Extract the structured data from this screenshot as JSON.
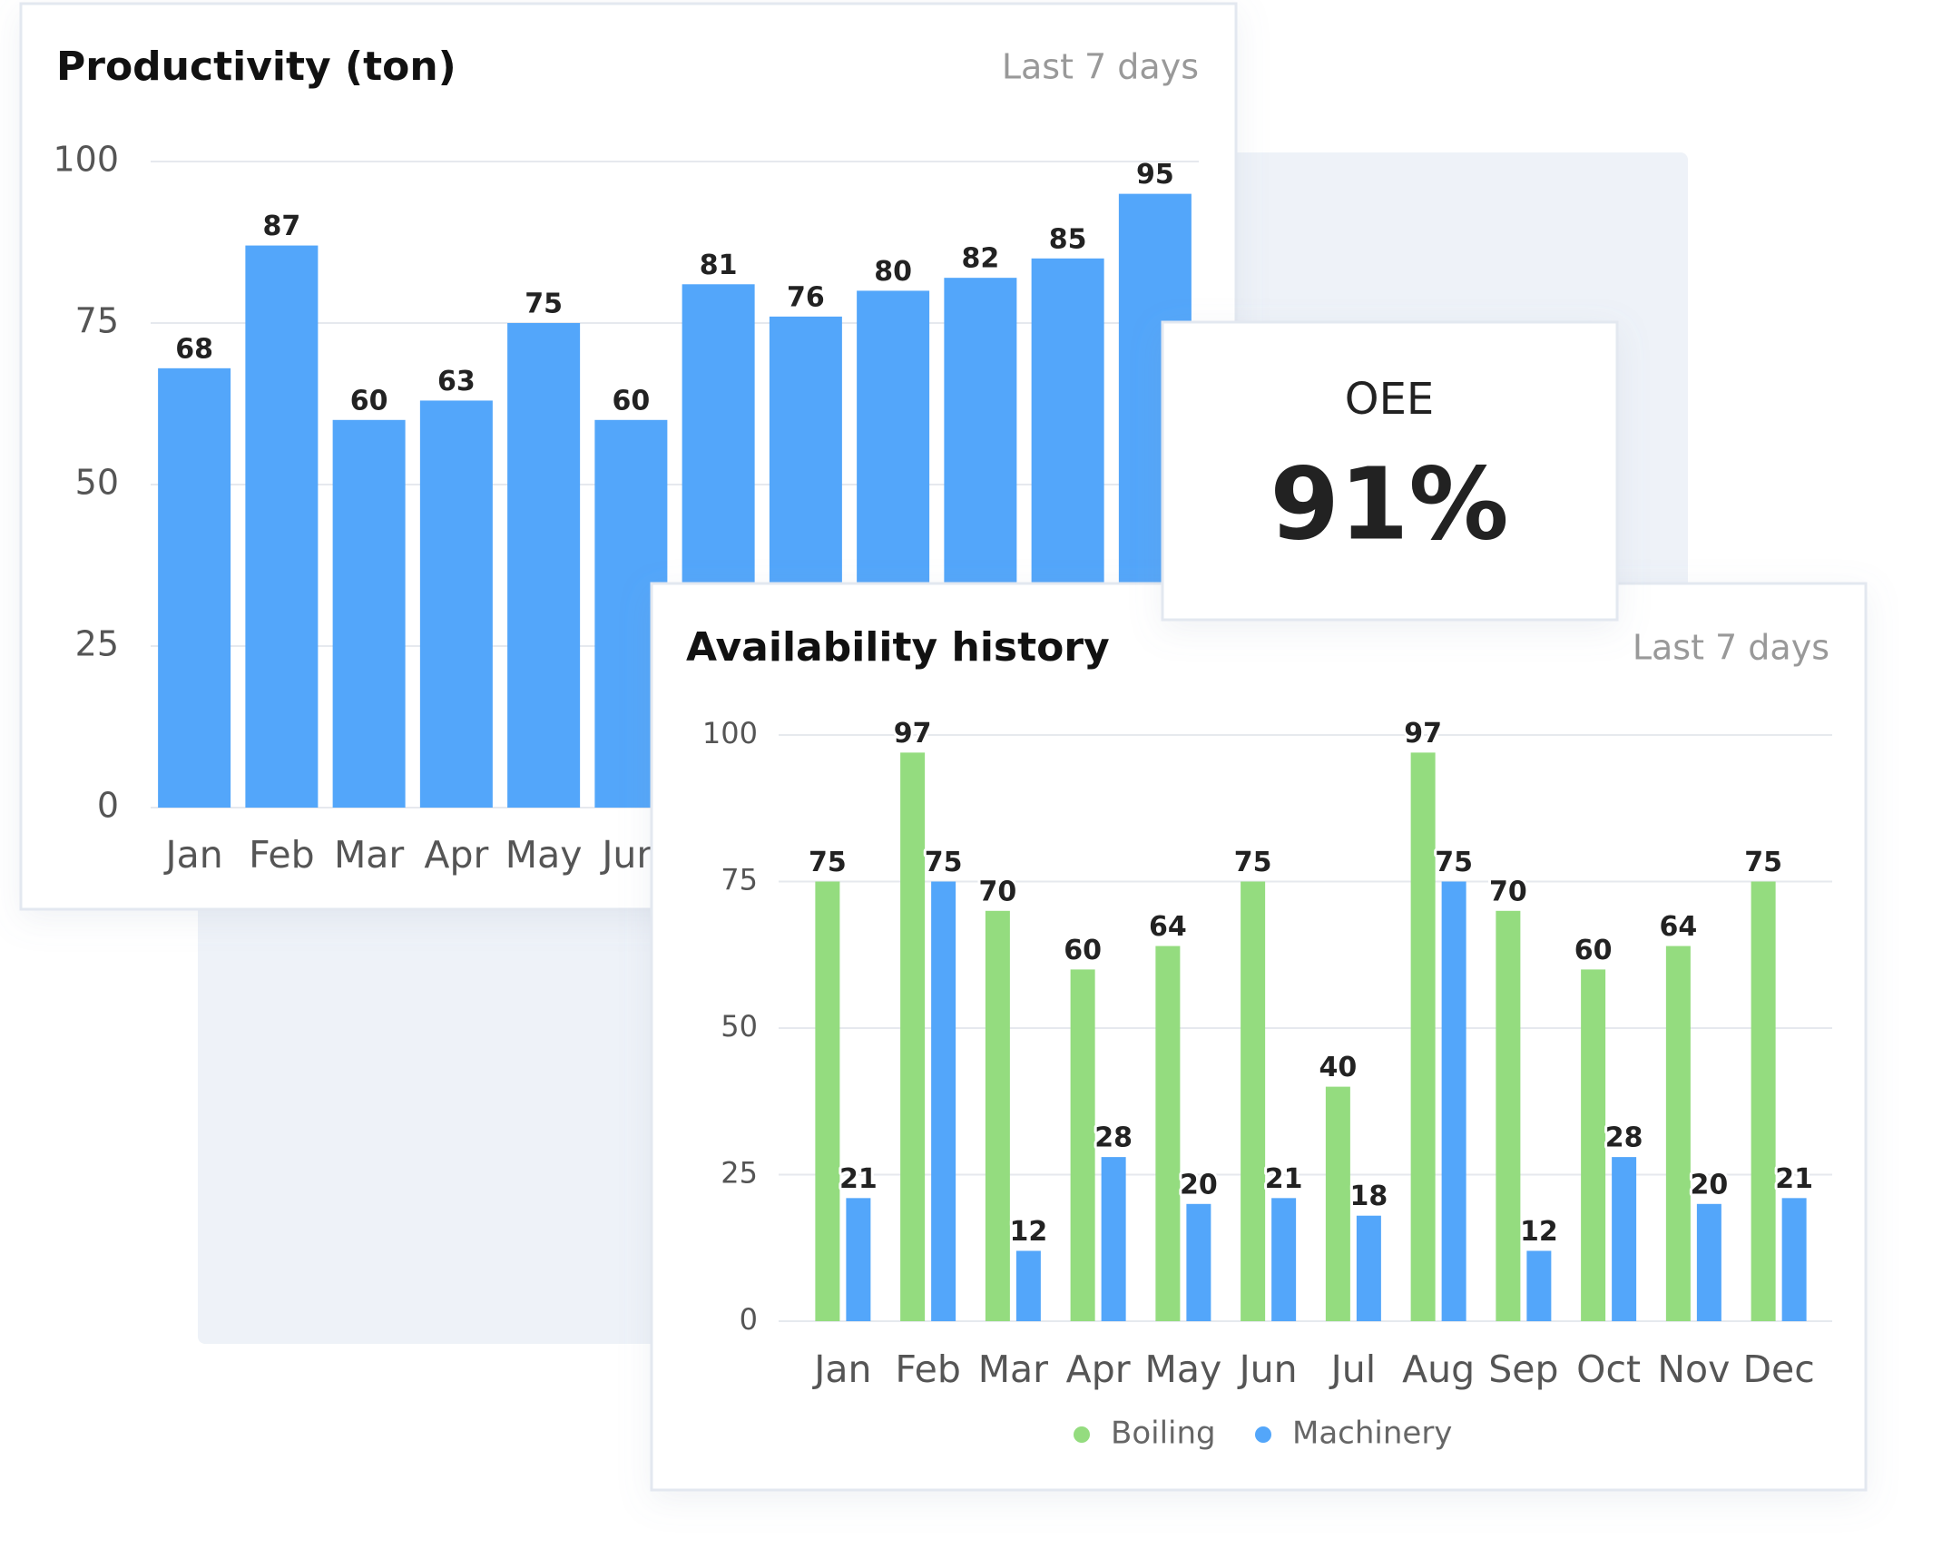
{
  "chart_data": [
    {
      "type": "bar",
      "title": "Productivity (ton)",
      "subtitle": "Last 7 days",
      "categories": [
        "Jan",
        "Feb",
        "Mar",
        "Apr",
        "May",
        "Jun",
        null,
        null,
        null,
        null,
        null,
        null
      ],
      "values": [
        68,
        87,
        60,
        63,
        75,
        60,
        81,
        76,
        80,
        82,
        85,
        95
      ],
      "color": "#53a6fa",
      "ylim": [
        0,
        100
      ],
      "yticks": [
        0,
        25,
        50,
        75,
        100
      ],
      "grid": true
    },
    {
      "type": "grouped_bar",
      "title": "Availability history",
      "subtitle": "Last 7 days",
      "categories": [
        "Jan",
        "Feb",
        "Mar",
        "Apr",
        "May",
        "Jun",
        "Jul",
        "Aug",
        "Sep",
        "Oct",
        "Nov",
        "Dec"
      ],
      "series": [
        {
          "name": "Boiling",
          "color": "#94dc7f",
          "values": [
            75,
            97,
            70,
            60,
            64,
            75,
            40,
            97,
            70,
            60,
            64,
            75
          ]
        },
        {
          "name": "Machinery",
          "color": "#53a6fa",
          "values": [
            21,
            75,
            12,
            28,
            20,
            21,
            18,
            75,
            12,
            28,
            20,
            21
          ]
        }
      ],
      "ylim": [
        0,
        100
      ],
      "yticks": [
        0,
        25,
        50,
        75,
        100
      ],
      "grid": true,
      "legend": "bottom"
    }
  ],
  "oee": {
    "label": "OEE",
    "value": "91%"
  }
}
